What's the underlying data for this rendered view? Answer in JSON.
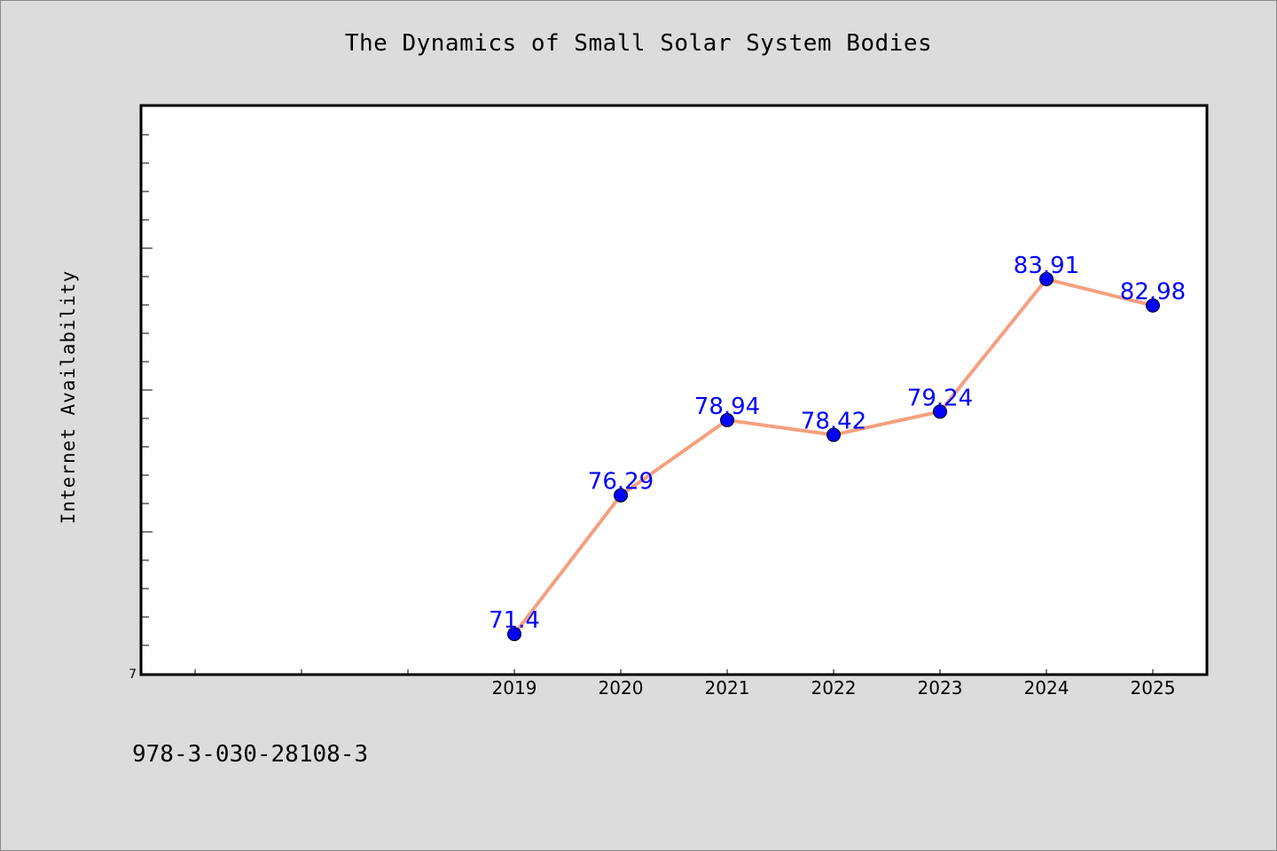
{
  "chart_data": {
    "type": "line",
    "title": "The Dynamics of Small Solar System Bodies",
    "xlabel": "",
    "ylabel": "Internet Availability",
    "categories": [
      "2019",
      "2020",
      "2021",
      "2022",
      "2023",
      "2024",
      "2025"
    ],
    "series": [
      {
        "values": [
          71.4,
          76.29,
          78.94,
          78.42,
          79.24,
          83.91,
          82.98
        ],
        "labels": [
          "71.4",
          "76.29",
          "78.94",
          "78.42",
          "79.24",
          "83.91",
          "82.98"
        ],
        "line_color": "#f4a07f",
        "marker_color": "#0000ff"
      }
    ],
    "y_tick_label": "7",
    "ylim": [
      70,
      90
    ],
    "x_slots": 10,
    "grid": false,
    "legend": "none"
  },
  "footer": {
    "isbn": "978-3-030-28108-3"
  },
  "colors": {
    "background": "#dcdcdc",
    "plot_background": "#ffffff",
    "data_label": "#0000ff"
  }
}
